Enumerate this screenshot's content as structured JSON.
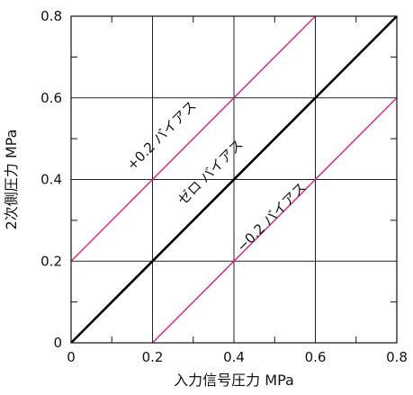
{
  "chart_data": {
    "type": "line",
    "title": "",
    "xlabel": "入力信号圧力 MPa",
    "ylabel": "2次側圧力 MPa",
    "xlim": [
      0,
      0.8
    ],
    "ylim": [
      0,
      0.8
    ],
    "x_ticks": [
      0,
      0.2,
      0.4,
      0.6,
      0.8
    ],
    "y_ticks": [
      0,
      0.2,
      0.4,
      0.6,
      0.8
    ],
    "x_tick_labels": [
      "0",
      "0.2",
      "0.4",
      "0.6",
      "0.8"
    ],
    "y_tick_labels": [
      "0",
      "0.2",
      "0.4",
      "0.6",
      "0.8"
    ],
    "grid": true,
    "legend": "none",
    "series": [
      {
        "name": "+0.2 バイアス",
        "color": "#e0207f",
        "points": [
          [
            0,
            0.2
          ],
          [
            0.6,
            0.8
          ]
        ]
      },
      {
        "name": "ゼロ バイアス",
        "color": "#000000",
        "points": [
          [
            0,
            0
          ],
          [
            0.8,
            0.8
          ]
        ]
      },
      {
        "name": "−0.2 バイアス",
        "color": "#e0207f",
        "points": [
          [
            0.2,
            0
          ],
          [
            0.8,
            0.6
          ]
        ]
      }
    ],
    "annotations": [
      {
        "text": "+0.2 バイアス",
        "series_index": 0,
        "x": 0.23,
        "y": 0.5
      },
      {
        "text": "ゼロ バイアス",
        "series_index": 1,
        "x": 0.35,
        "y": 0.41
      },
      {
        "text": "−0.2 バイアス",
        "series_index": 2,
        "x": 0.5,
        "y": 0.3
      }
    ]
  }
}
